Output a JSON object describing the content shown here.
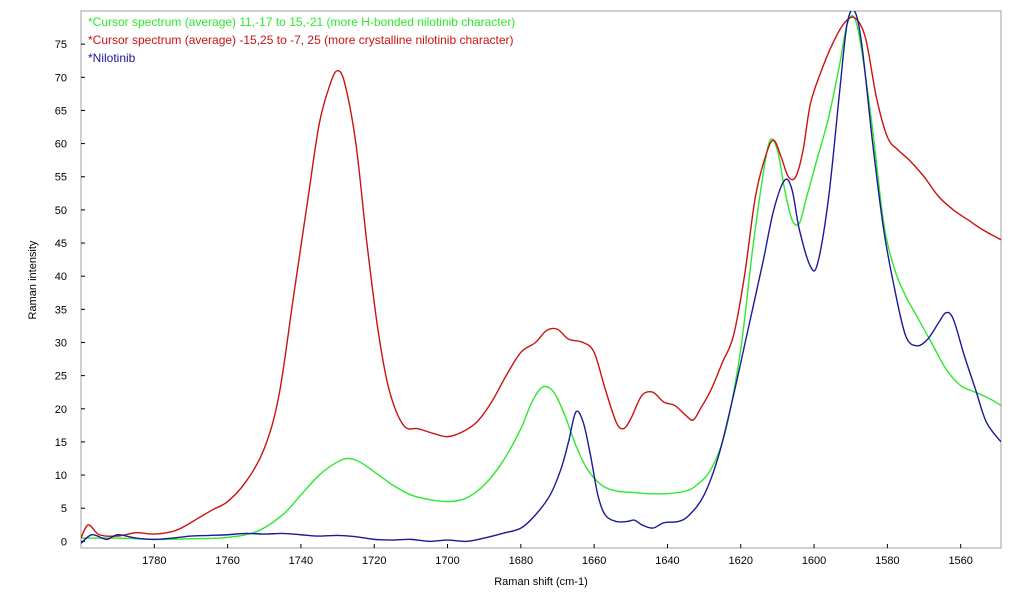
{
  "chart_data": {
    "type": "line",
    "xlabel": "Raman shift (cm-1)",
    "ylabel": "Raman intensity",
    "xlim": [
      1800,
      1549
    ],
    "ylim": [
      -1,
      80
    ],
    "x_reversed": true,
    "grid": false,
    "legend_placement": "top-left",
    "xticks": [
      1780,
      1760,
      1740,
      1720,
      1700,
      1680,
      1660,
      1640,
      1620,
      1600,
      1580,
      1560
    ],
    "yticks": [
      0,
      5,
      10,
      15,
      20,
      25,
      30,
      35,
      40,
      45,
      50,
      55,
      60,
      65,
      70,
      75
    ],
    "series": [
      {
        "name": "*Cursor spectrum (average) 11,-17 to 15,-21 (more H-bonded nilotinib character)",
        "color": "#2ee82e",
        "points": [
          [
            1800,
            0.5
          ],
          [
            1790,
            0.5
          ],
          [
            1780,
            0.3
          ],
          [
            1770,
            0.4
          ],
          [
            1760,
            0.6
          ],
          [
            1752,
            1.5
          ],
          [
            1745,
            4
          ],
          [
            1740,
            7
          ],
          [
            1735,
            10
          ],
          [
            1730,
            12
          ],
          [
            1727,
            12.5
          ],
          [
            1724,
            12
          ],
          [
            1720,
            10.5
          ],
          [
            1715,
            8.5
          ],
          [
            1710,
            7
          ],
          [
            1705,
            6.3
          ],
          [
            1700,
            6
          ],
          [
            1695,
            6.5
          ],
          [
            1690,
            8.5
          ],
          [
            1685,
            12
          ],
          [
            1680,
            17
          ],
          [
            1677,
            21
          ],
          [
            1674,
            23.3
          ],
          [
            1671,
            22.5
          ],
          [
            1668,
            19
          ],
          [
            1665,
            14.5
          ],
          [
            1662,
            11
          ],
          [
            1658,
            8.5
          ],
          [
            1654,
            7.6
          ],
          [
            1650,
            7.4
          ],
          [
            1645,
            7.2
          ],
          [
            1640,
            7.2
          ],
          [
            1635,
            7.6
          ],
          [
            1632,
            8.5
          ],
          [
            1628,
            11
          ],
          [
            1624,
            17
          ],
          [
            1620,
            29
          ],
          [
            1617,
            43
          ],
          [
            1614,
            55
          ],
          [
            1612,
            60.5
          ],
          [
            1610,
            59
          ],
          [
            1608,
            53
          ],
          [
            1606,
            48.5
          ],
          [
            1604,
            48
          ],
          [
            1602,
            52
          ],
          [
            1599,
            58
          ],
          [
            1596,
            64
          ],
          [
            1593,
            72
          ],
          [
            1591,
            78
          ],
          [
            1589,
            79
          ],
          [
            1587,
            74
          ],
          [
            1584,
            62
          ],
          [
            1581,
            48
          ],
          [
            1578,
            41
          ],
          [
            1575,
            37
          ],
          [
            1572,
            34
          ],
          [
            1568,
            30
          ],
          [
            1564,
            26
          ],
          [
            1560,
            23.5
          ],
          [
            1556,
            22.5
          ],
          [
            1552,
            21.5
          ],
          [
            1549,
            20.5
          ]
        ]
      },
      {
        "name": "*Cursor spectrum (average) -15,25 to -7, 25 (more crystalline nilotinib character)",
        "color": "#cc1111",
        "points": [
          [
            1800,
            0.5
          ],
          [
            1798,
            2.5
          ],
          [
            1795,
            1
          ],
          [
            1790,
            0.8
          ],
          [
            1785,
            1.3
          ],
          [
            1780,
            1.1
          ],
          [
            1775,
            1.5
          ],
          [
            1772,
            2.2
          ],
          [
            1768,
            3.5
          ],
          [
            1764,
            4.8
          ],
          [
            1760,
            6
          ],
          [
            1755,
            9
          ],
          [
            1750,
            14
          ],
          [
            1746,
            22
          ],
          [
            1742,
            37
          ],
          [
            1738,
            52
          ],
          [
            1735,
            63
          ],
          [
            1732,
            69
          ],
          [
            1730,
            71
          ],
          [
            1728,
            69
          ],
          [
            1725,
            60
          ],
          [
            1722,
            45
          ],
          [
            1719,
            32
          ],
          [
            1716,
            23
          ],
          [
            1712,
            17.5
          ],
          [
            1708,
            17
          ],
          [
            1704,
            16.3
          ],
          [
            1700,
            15.8
          ],
          [
            1696,
            16.5
          ],
          [
            1692,
            18
          ],
          [
            1688,
            21
          ],
          [
            1684,
            25
          ],
          [
            1680,
            28.5
          ],
          [
            1676,
            30
          ],
          [
            1673,
            31.8
          ],
          [
            1670,
            32
          ],
          [
            1667,
            30.5
          ],
          [
            1663,
            30
          ],
          [
            1660,
            28.5
          ],
          [
            1657,
            23
          ],
          [
            1654,
            18
          ],
          [
            1652,
            17
          ],
          [
            1650,
            18.5
          ],
          [
            1647,
            22
          ],
          [
            1644,
            22.5
          ],
          [
            1641,
            21
          ],
          [
            1638,
            20.5
          ],
          [
            1635,
            19
          ],
          [
            1633,
            18.3
          ],
          [
            1631,
            20
          ],
          [
            1628,
            23
          ],
          [
            1625,
            27
          ],
          [
            1622,
            31
          ],
          [
            1619,
            40
          ],
          [
            1616,
            52
          ],
          [
            1613,
            58.5
          ],
          [
            1611,
            60.5
          ],
          [
            1609,
            58
          ],
          [
            1607,
            55
          ],
          [
            1605,
            55
          ],
          [
            1603,
            59
          ],
          [
            1601,
            66
          ],
          [
            1598,
            71
          ],
          [
            1595,
            75
          ],
          [
            1592,
            78
          ],
          [
            1589,
            79
          ],
          [
            1586,
            76
          ],
          [
            1583,
            67
          ],
          [
            1580,
            61
          ],
          [
            1577,
            59
          ],
          [
            1574,
            57.5
          ],
          [
            1570,
            55
          ],
          [
            1566,
            52
          ],
          [
            1562,
            50
          ],
          [
            1558,
            48.5
          ],
          [
            1554,
            47
          ],
          [
            1549,
            45.5
          ]
        ]
      },
      {
        "name": "*Nilotinib",
        "color": "#1a1a9a",
        "points": [
          [
            1800,
            -0.3
          ],
          [
            1797,
            1
          ],
          [
            1793,
            0.3
          ],
          [
            1790,
            1
          ],
          [
            1785,
            0.5
          ],
          [
            1780,
            0.3
          ],
          [
            1775,
            0.5
          ],
          [
            1770,
            0.8
          ],
          [
            1765,
            0.9
          ],
          [
            1760,
            1.0
          ],
          [
            1755,
            1.2
          ],
          [
            1750,
            1.1
          ],
          [
            1745,
            1.2
          ],
          [
            1740,
            1.0
          ],
          [
            1735,
            0.8
          ],
          [
            1730,
            0.9
          ],
          [
            1725,
            0.7
          ],
          [
            1720,
            0.3
          ],
          [
            1715,
            0.2
          ],
          [
            1710,
            0.3
          ],
          [
            1705,
            0
          ],
          [
            1700,
            0.2
          ],
          [
            1695,
            0
          ],
          [
            1690,
            0.5
          ],
          [
            1685,
            1.2
          ],
          [
            1680,
            2
          ],
          [
            1676,
            4
          ],
          [
            1672,
            7
          ],
          [
            1669,
            11
          ],
          [
            1667,
            15
          ],
          [
            1665,
            19.5
          ],
          [
            1663,
            18
          ],
          [
            1661,
            13
          ],
          [
            1659,
            7
          ],
          [
            1657,
            4
          ],
          [
            1654,
            3
          ],
          [
            1651,
            3
          ],
          [
            1649,
            3.2
          ],
          [
            1647,
            2.5
          ],
          [
            1644,
            2
          ],
          [
            1641,
            2.8
          ],
          [
            1637,
            3
          ],
          [
            1634,
            4
          ],
          [
            1630,
            7
          ],
          [
            1626,
            13
          ],
          [
            1622,
            22
          ],
          [
            1618,
            32
          ],
          [
            1614,
            42
          ],
          [
            1611,
            50
          ],
          [
            1608,
            54.5
          ],
          [
            1606,
            53
          ],
          [
            1604,
            47
          ],
          [
            1601,
            41.5
          ],
          [
            1599,
            42
          ],
          [
            1596,
            52
          ],
          [
            1593,
            68
          ],
          [
            1591,
            78
          ],
          [
            1589,
            80
          ],
          [
            1587,
            75
          ],
          [
            1584,
            60
          ],
          [
            1581,
            47
          ],
          [
            1578,
            38
          ],
          [
            1575,
            31
          ],
          [
            1572,
            29.5
          ],
          [
            1569,
            30.5
          ],
          [
            1566,
            33
          ],
          [
            1564,
            34.5
          ],
          [
            1562,
            33.5
          ],
          [
            1559,
            28
          ],
          [
            1556,
            23
          ],
          [
            1553,
            18
          ],
          [
            1549,
            15
          ]
        ]
      }
    ]
  }
}
